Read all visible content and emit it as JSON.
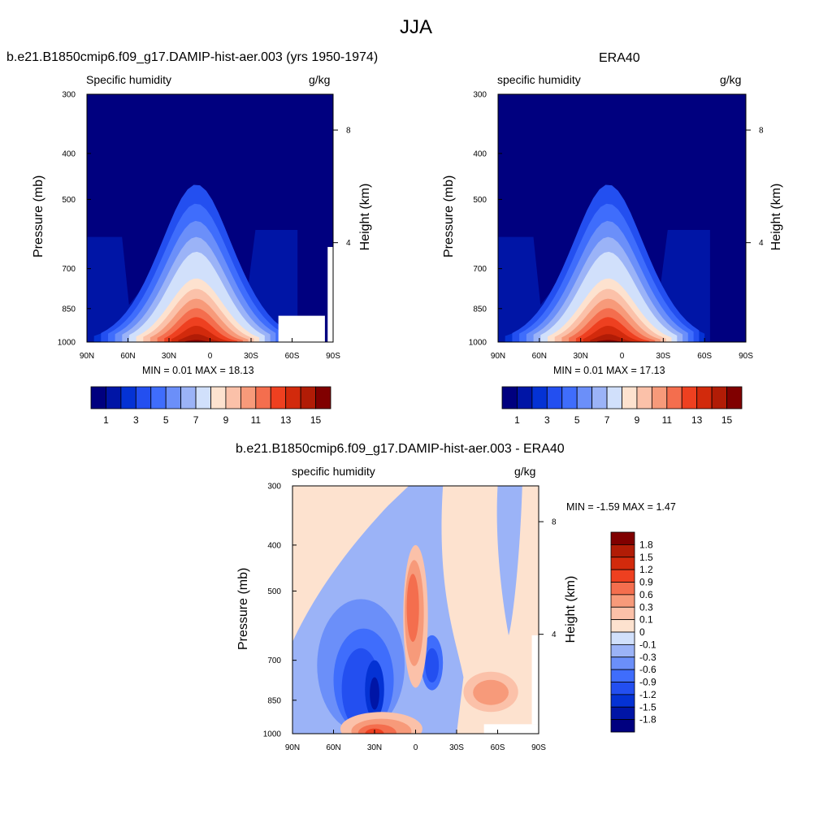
{
  "figure": {
    "title": "JJA",
    "colors": {
      "humidity_scale": [
        "#00007f",
        "#0015a6",
        "#0432d4",
        "#234ff0",
        "#3f6dfc",
        "#6b8ff9",
        "#9bb3f7",
        "#d1e0fb",
        "#fde2cf",
        "#fbc1a9",
        "#f79a7a",
        "#f46e4e",
        "#ee4020",
        "#d22a0c",
        "#b11c06",
        "#800000"
      ],
      "diff_scale": [
        "#00007f",
        "#0015a6",
        "#0432d4",
        "#234ff0",
        "#3f6dfc",
        "#6b8ff9",
        "#9bb3f7",
        "#d1e0fb",
        "#fde2cf",
        "#fbc1a9",
        "#f79a7a",
        "#f46e4e",
        "#ee4020",
        "#d22a0c",
        "#b11c06",
        "#800000"
      ]
    }
  },
  "panels": [
    {
      "id": "model",
      "title": "b.e21.B1850cmip6.f09_g17.DAMIP-hist-aer.003 (yrs 1950-1974)",
      "left_label": "Specific humidity",
      "right_label": "g/kg",
      "ylabel": "Pressure (mb)",
      "ylabel_right": "Height (km)",
      "minmax": "MIN =   0.01  MAX =  18.13",
      "colorbar_ticks": [
        "1",
        "3",
        "5",
        "7",
        "9",
        "11",
        "13",
        "15"
      ]
    },
    {
      "id": "era40",
      "title": "ERA40",
      "left_label": "specific humidity",
      "right_label": "g/kg",
      "ylabel": "Pressure (mb)",
      "ylabel_right": "Height (km)",
      "minmax": "MIN =   0.01  MAX =  17.13",
      "colorbar_ticks": [
        "1",
        "3",
        "5",
        "7",
        "9",
        "11",
        "13",
        "15"
      ]
    },
    {
      "id": "diff",
      "title": "b.e21.B1850cmip6.f09_g17.DAMIP-hist-aer.003 - ERA40",
      "left_label": "specific humidity",
      "right_label": "g/kg",
      "ylabel": "Pressure (mb)",
      "ylabel_right": "Height (km)",
      "minmax": "MIN =  -1.59  MAX =   1.47",
      "colorbar_ticks": [
        "1.8",
        "1.5",
        "1.2",
        "0.9",
        "0.6",
        "0.3",
        "0.1",
        "0",
        "-0.1",
        "-0.3",
        "-0.6",
        "-0.9",
        "-1.2",
        "-1.5",
        "-1.8"
      ]
    }
  ],
  "chart_data": [
    {
      "type": "heatmap",
      "title": "b.e21.B1850cmip6.f09_g17.DAMIP-hist-aer.003 (yrs 1950-1974)",
      "variable": "Specific humidity",
      "units": "g/kg",
      "ylabel": "Pressure (mb)",
      "ylabel_right": "Height (km)",
      "x_ticks": [
        "90N",
        "60N",
        "30N",
        "0",
        "30S",
        "60S",
        "90S"
      ],
      "y_ticks": [
        "300",
        "400",
        "500",
        "700",
        "850",
        "1000"
      ],
      "y_right_ticks": [
        "8",
        "4"
      ],
      "ylim": [
        1000,
        300
      ],
      "xlim": [
        90,
        -90
      ],
      "contour_levels": [
        1,
        2,
        3,
        4,
        5,
        6,
        7,
        8,
        9,
        10,
        11,
        12,
        13,
        14,
        15
      ],
      "min": 0.01,
      "max": 18.13,
      "peak_latitude": 10,
      "peak_pressure": 1000,
      "peak_value": 18.13
    },
    {
      "type": "heatmap",
      "title": "ERA40",
      "variable": "specific humidity",
      "units": "g/kg",
      "ylabel": "Pressure (mb)",
      "ylabel_right": "Height (km)",
      "x_ticks": [
        "90N",
        "60N",
        "30N",
        "0",
        "30S",
        "60S",
        "90S"
      ],
      "y_ticks": [
        "300",
        "400",
        "500",
        "700",
        "850",
        "1000"
      ],
      "y_right_ticks": [
        "8",
        "4"
      ],
      "ylim": [
        1000,
        300
      ],
      "xlim": [
        90,
        -90
      ],
      "contour_levels": [
        1,
        2,
        3,
        4,
        5,
        6,
        7,
        8,
        9,
        10,
        11,
        12,
        13,
        14,
        15
      ],
      "min": 0.01,
      "max": 17.13,
      "peak_latitude": 10,
      "peak_pressure": 1000,
      "peak_value": 17.13
    },
    {
      "type": "heatmap",
      "title": "b.e21.B1850cmip6.f09_g17.DAMIP-hist-aer.003 - ERA40",
      "variable": "specific humidity",
      "units": "g/kg",
      "ylabel": "Pressure (mb)",
      "ylabel_right": "Height (km)",
      "x_ticks": [
        "90N",
        "60N",
        "30N",
        "0",
        "30S",
        "60S",
        "90S"
      ],
      "y_ticks": [
        "300",
        "400",
        "500",
        "700",
        "850",
        "1000"
      ],
      "y_right_ticks": [
        "8",
        "4"
      ],
      "ylim": [
        1000,
        300
      ],
      "xlim": [
        90,
        -90
      ],
      "contour_levels": [
        -1.8,
        -1.5,
        -1.2,
        -0.9,
        -0.6,
        -0.3,
        -0.1,
        0,
        0.1,
        0.3,
        0.6,
        0.9,
        1.2,
        1.5,
        1.8
      ],
      "min": -1.59,
      "max": 1.47
    }
  ]
}
